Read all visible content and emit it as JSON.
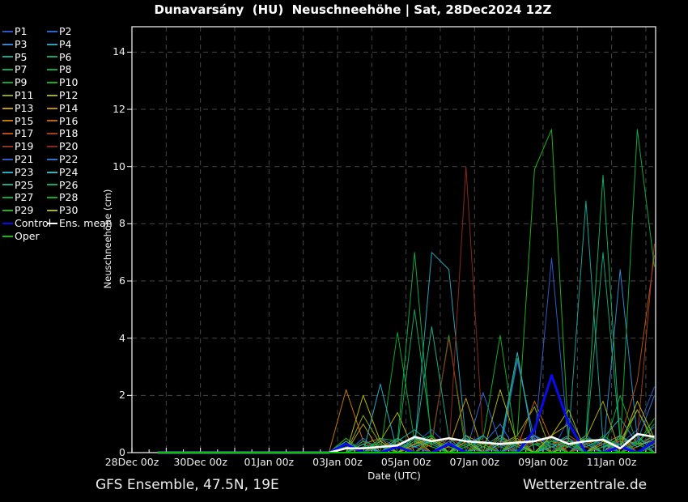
{
  "title": "Dunavarsány  (HU)  Neuschneehöhe | Sat, 28Dec2024 12Z",
  "footer": {
    "left": "GFS Ensemble, 47.5N, 19E",
    "right": "Wetterzentrale.de"
  },
  "chart_data": {
    "type": "line",
    "title": "Dunavarsány  (HU)  Neuschneehöhe | Sat, 28Dec2024 12Z",
    "xlabel": "Date (UTC)",
    "ylabel": "Neuschneehöhe (cm)",
    "ylim": [
      0,
      14.9
    ],
    "xlim_days_since_28dec00z": [
      0,
      15.3
    ],
    "grid": true,
    "legend_position": "outside-upper-left",
    "background_color": "#000000",
    "grid_color": "#464646",
    "axis_color": "#ffffff",
    "ytick_values": [
      0,
      2,
      4,
      6,
      8,
      10,
      12,
      14
    ],
    "xtick_days": [
      0,
      2,
      4,
      6,
      8,
      10,
      12,
      14
    ],
    "xtick_labels": [
      "28Dec 00z",
      "30Dec 00z",
      "01Jan 00z",
      "03Jan 00z",
      "05Jan 00z",
      "07Jan 00z",
      "09Jan 00z",
      "11Jan 00z"
    ],
    "x_days": [
      0.75,
      1.25,
      1.75,
      2.25,
      2.75,
      3.25,
      3.75,
      4.25,
      4.75,
      5.25,
      5.75,
      6.25,
      6.75,
      7.25,
      7.75,
      8.25,
      8.75,
      9.25,
      9.75,
      10.25,
      10.75,
      11.25,
      11.75,
      12.25,
      12.75,
      13.25,
      13.75,
      14.25,
      14.75,
      15.25
    ],
    "series": [
      {
        "name": "P1",
        "color": "#2857c8",
        "width": 1,
        "values": [
          0,
          0,
          0,
          0,
          0,
          0,
          0,
          0,
          0,
          0,
          0,
          0,
          0.2,
          0,
          0,
          0.3,
          0.8,
          0.2,
          0,
          0,
          0.3,
          0,
          0.4,
          0,
          1.2,
          0.2,
          0,
          0.3,
          0.8,
          2.3
        ]
      },
      {
        "name": "P2",
        "color": "#2e63cf",
        "width": 1,
        "values": [
          0,
          0,
          0,
          0,
          0,
          0,
          0,
          0,
          0,
          0,
          0,
          0,
          0,
          0.3,
          0,
          0.2,
          0,
          0.4,
          0,
          2.1,
          0.3,
          0,
          0.5,
          0.2,
          0,
          0.6,
          0.2,
          0,
          0.4,
          0.9
        ]
      },
      {
        "name": "P3",
        "color": "#2f86cf",
        "width": 1,
        "values": [
          0,
          0,
          0,
          0,
          0,
          0,
          0,
          0,
          0,
          0,
          0,
          0.2,
          0,
          0,
          0.4,
          0,
          0.3,
          0,
          0.2,
          0,
          0.5,
          0.3,
          0,
          0.2,
          0,
          0.4,
          0,
          6.4,
          0.5,
          0.2
        ]
      },
      {
        "name": "P4",
        "color": "#25a2b4",
        "width": 1,
        "values": [
          0,
          0,
          0,
          0,
          0,
          0,
          0,
          0,
          0,
          0,
          0,
          0,
          0.3,
          0.5,
          0,
          0.2,
          7.0,
          6.4,
          0.4,
          0,
          0.2,
          0,
          0.6,
          0.3,
          0,
          0.2,
          0.5,
          1.2,
          0.3,
          0
        ]
      },
      {
        "name": "P5",
        "color": "#17a295",
        "width": 1,
        "values": [
          0,
          0,
          0,
          0,
          0,
          0,
          0,
          0,
          0,
          0,
          0,
          0,
          0.2,
          0,
          0.4,
          0.8,
          0.3,
          0,
          0.5,
          0,
          0.2,
          0.4,
          0,
          0.3,
          0.6,
          8.8,
          0.4,
          0,
          0.2,
          0.5
        ]
      },
      {
        "name": "P6",
        "color": "#13a378",
        "width": 1,
        "values": [
          0,
          0,
          0,
          0,
          0,
          0,
          0,
          0,
          0,
          0,
          0,
          0.3,
          0,
          0.4,
          0,
          0.2,
          0.6,
          0,
          0.3,
          0,
          0.4,
          0.2,
          0,
          0.5,
          0,
          0.3,
          7.0,
          0.4,
          0,
          0.2
        ]
      },
      {
        "name": "P7",
        "color": "#12a35c",
        "width": 1,
        "values": [
          0,
          0,
          0,
          0,
          0,
          0,
          0,
          0,
          0,
          0,
          0,
          0,
          0.4,
          0,
          0.2,
          5.0,
          0.5,
          0.3,
          0,
          0.6,
          0,
          0.2,
          0.4,
          0,
          0.3,
          0,
          0.5,
          0.2,
          1.5,
          0.4
        ]
      },
      {
        "name": "P8",
        "color": "#10a343",
        "width": 1,
        "values": [
          0,
          0,
          0,
          0,
          0,
          0,
          0,
          0,
          0,
          0,
          0,
          0.2,
          0,
          0.5,
          0,
          0.3,
          0.4,
          0,
          0.6,
          0,
          0.2,
          3.3,
          0.4,
          0,
          0.5,
          0.2,
          0,
          2.0,
          0.3,
          0
        ]
      },
      {
        "name": "P9",
        "color": "#0ea52c",
        "width": 1,
        "values": [
          0,
          0,
          0,
          0,
          0,
          0,
          0,
          0,
          0,
          0,
          0,
          0,
          0.3,
          0,
          4.2,
          0.4,
          0,
          0.5,
          0.2,
          0,
          0.6,
          0,
          0.3,
          0.4,
          0,
          0.2,
          0.5,
          0,
          0.3,
          1.0
        ]
      },
      {
        "name": "P10",
        "color": "#16ad1e",
        "width": 1,
        "values": [
          0,
          0,
          0,
          0,
          0,
          0,
          0,
          0,
          0,
          0,
          0,
          0.4,
          0,
          0.2,
          0.5,
          0,
          0.3,
          4.1,
          0,
          0.4,
          0.2,
          0,
          0.6,
          0,
          0.3,
          0.5,
          0,
          0.2,
          0.4,
          0
        ]
      },
      {
        "name": "P11",
        "color": "#8ba612",
        "width": 1,
        "values": [
          0,
          0,
          0,
          0,
          0,
          0,
          0,
          0,
          0,
          0,
          0,
          0,
          1.3,
          0.3,
          0,
          0.5,
          0.2,
          0,
          0.4,
          0,
          0.3,
          0.6,
          1.6,
          0,
          0.4,
          0.2,
          0,
          0.5,
          0.3,
          0
        ]
      },
      {
        "name": "P12",
        "color": "#a9ac10",
        "width": 1,
        "values": [
          0,
          0,
          0,
          0,
          0,
          0,
          0,
          0,
          0,
          0,
          0,
          0.3,
          0,
          0.4,
          1.4,
          0,
          0.5,
          0.2,
          0,
          0.3,
          0,
          0.4,
          0.6,
          0,
          0.2,
          0.5,
          1.8,
          0,
          0.3,
          0.4
        ]
      },
      {
        "name": "P13",
        "color": "#bb9b0c",
        "width": 1,
        "values": [
          0,
          0,
          0,
          0,
          0,
          0,
          0,
          0,
          0,
          0,
          0,
          0,
          1.0,
          0,
          0.3,
          0.5,
          0,
          0.2,
          1.9,
          0,
          0.4,
          0.3,
          0,
          0.6,
          1.0,
          0,
          0.2,
          0.4,
          1.5,
          0.3
        ]
      },
      {
        "name": "P14",
        "color": "#c1890a",
        "width": 1,
        "values": [
          0,
          0,
          0,
          0,
          0,
          0,
          0,
          0,
          0,
          0,
          0,
          0.5,
          0,
          0.3,
          0,
          0.4,
          0.2,
          0,
          0.6,
          0.3,
          0,
          0.5,
          0,
          0.4,
          0.2,
          0,
          0.3,
          0.6,
          0,
          0.4
        ]
      },
      {
        "name": "P15",
        "color": "#c27708",
        "width": 1,
        "values": [
          0,
          0,
          0,
          0,
          0,
          0,
          0,
          0,
          0,
          0,
          0,
          2.2,
          0.4,
          0,
          0.3,
          0,
          0.5,
          0.2,
          0,
          0.4,
          0,
          0.3,
          0.6,
          0,
          0.5,
          0.2,
          0,
          0.4,
          0.3,
          0
        ]
      },
      {
        "name": "P16",
        "color": "#bc6409",
        "width": 1,
        "values": [
          0,
          0,
          0,
          0,
          0,
          0,
          0,
          0,
          0,
          0,
          0,
          0,
          0.3,
          0.5,
          0,
          0.2,
          0.4,
          0,
          0.3,
          0,
          0.6,
          0.2,
          1.8,
          0.4,
          0,
          0.3,
          0.5,
          0,
          0.2,
          0.6
        ]
      },
      {
        "name": "P17",
        "color": "#b2500e",
        "width": 1,
        "values": [
          0,
          0,
          0,
          0,
          0,
          0,
          0,
          0,
          0,
          0,
          0,
          0.3,
          0,
          0.2,
          0.4,
          0,
          0.3,
          0.5,
          0,
          0.2,
          0,
          0.4,
          0.3,
          0,
          0.6,
          0.2,
          0,
          0.5,
          2.5,
          6.9
        ]
      },
      {
        "name": "P18",
        "color": "#a43c15",
        "width": 1,
        "values": [
          0,
          0,
          0,
          0,
          0,
          0,
          0,
          0,
          0,
          0,
          0,
          0,
          0.4,
          0,
          0.2,
          0.3,
          0,
          0.5,
          0.2,
          0,
          0.4,
          0,
          0.3,
          0.6,
          0,
          0.2,
          0.5,
          0,
          0.5,
          7.3
        ]
      },
      {
        "name": "P19",
        "color": "#943119",
        "width": 1,
        "values": [
          0,
          0,
          0,
          0,
          0,
          0,
          0,
          0,
          0,
          0,
          0,
          0.2,
          0,
          0.3,
          0,
          0.5,
          0.4,
          4.0,
          0.3,
          0,
          0.2,
          0.6,
          0,
          0.3,
          0.4,
          0,
          0.2,
          0.5,
          0,
          0.3
        ]
      },
      {
        "name": "P20",
        "color": "#8a2817",
        "width": 1,
        "values": [
          0,
          0,
          0,
          0,
          0,
          0,
          0,
          0,
          0,
          0,
          0,
          0,
          0.2,
          0.4,
          0,
          0.3,
          0.5,
          0,
          10.0,
          0.4,
          0,
          0.2,
          0.3,
          0,
          0.5,
          0.2,
          0,
          0.4,
          0.3,
          0
        ]
      },
      {
        "name": "P21",
        "color": "#2a5cc8",
        "width": 1,
        "values": [
          0,
          0,
          0,
          0,
          0,
          0,
          0,
          0,
          0,
          0,
          0,
          0.3,
          0,
          0.5,
          0.2,
          0,
          0.4,
          0,
          0.3,
          0.6,
          0,
          3.2,
          0.4,
          6.8,
          0.2,
          0,
          0.5,
          0.3,
          0,
          0.2
        ]
      },
      {
        "name": "P22",
        "color": "#2e72d2",
        "width": 1,
        "values": [
          0,
          0,
          0,
          0,
          0,
          0,
          0,
          0,
          0,
          0,
          0,
          0,
          0.5,
          0,
          0.3,
          0.2,
          0,
          0.4,
          0,
          0.3,
          1.0,
          0,
          0.6,
          0.2,
          0,
          0.5,
          0.3,
          0,
          0.4,
          2.0
        ]
      },
      {
        "name": "P23",
        "color": "#26a9c1",
        "width": 1,
        "values": [
          0,
          0,
          0,
          0,
          0,
          0,
          0,
          0,
          0,
          0,
          0,
          0.4,
          0,
          2.4,
          0,
          0.5,
          0.3,
          0,
          0.2,
          0.6,
          0,
          0.3,
          0,
          0.4,
          0.5,
          0,
          0.2,
          0.3,
          0.6,
          0
        ]
      },
      {
        "name": "P24",
        "color": "#30b5bf",
        "width": 1,
        "values": [
          0,
          0,
          0,
          0,
          0,
          0,
          0,
          0,
          0,
          0,
          0,
          0,
          0.3,
          0,
          0.5,
          0.2,
          0.4,
          0,
          0.6,
          0,
          0.3,
          3.5,
          0,
          0.2,
          0.4,
          0.3,
          0,
          0.6,
          0.2,
          0.5
        ]
      },
      {
        "name": "P25",
        "color": "#1daa81",
        "width": 1,
        "values": [
          0,
          0,
          0,
          0,
          0,
          0,
          0,
          0,
          0,
          0,
          0,
          0.2,
          0,
          0.4,
          0,
          0.3,
          4.4,
          0.5,
          0,
          0.2,
          0.6,
          0,
          0.3,
          0,
          0.4,
          0.2,
          0.5,
          0,
          0.3,
          0.6
        ]
      },
      {
        "name": "P26",
        "color": "#16a95e",
        "width": 1,
        "values": [
          0,
          0,
          0,
          0,
          0,
          0,
          0,
          0,
          0,
          0,
          0,
          0,
          0.4,
          0.2,
          0,
          0.6,
          0.3,
          0,
          0.5,
          0.2,
          0,
          0.4,
          0,
          0.3,
          0.2,
          0.6,
          9.7,
          0.4,
          0,
          0.3
        ]
      },
      {
        "name": "P27",
        "color": "#0fa83c",
        "width": 1,
        "values": [
          0,
          0,
          0,
          0,
          0,
          0,
          0,
          0,
          0,
          0,
          0,
          0.3,
          0,
          0.5,
          0.4,
          7.0,
          0.2,
          0,
          0.3,
          0,
          0.5,
          0.2,
          0,
          0.4,
          0.3,
          0,
          0.6,
          0.2,
          11.3,
          6.5
        ]
      },
      {
        "name": "P28",
        "color": "#13ab2e",
        "width": 1,
        "values": [
          0,
          0,
          0,
          0,
          0,
          0,
          0,
          0,
          0,
          0,
          0,
          0,
          0.2,
          0.3,
          0,
          0.4,
          0.6,
          0,
          0.2,
          0.5,
          4.1,
          0,
          0.3,
          0.2,
          0,
          0.5,
          0.4,
          0,
          0.3,
          0
        ]
      },
      {
        "name": "P29",
        "color": "#1eb214",
        "width": 1,
        "values": [
          0,
          0,
          0,
          0,
          0,
          0,
          0,
          0,
          0,
          0,
          0,
          0.5,
          0,
          0.2,
          0.3,
          0,
          0.4,
          0.2,
          0,
          0.3,
          0,
          0.6,
          9.9,
          11.3,
          0.4,
          0,
          0.2,
          0.5,
          0.3,
          1.2
        ]
      },
      {
        "name": "P30",
        "color": "#b1b310",
        "width": 1,
        "values": [
          0,
          0,
          0,
          0,
          0,
          0,
          0,
          0,
          0,
          0,
          0,
          0,
          2.0,
          0.4,
          0,
          0.3,
          0.5,
          0,
          0.4,
          0,
          2.2,
          0.3,
          0,
          0.6,
          1.5,
          0,
          0.4,
          0.2,
          1.8,
          0.5
        ]
      },
      {
        "name": "Control",
        "color": "#0a0aee",
        "width": 3,
        "values": [
          0,
          0,
          0,
          0,
          0,
          0,
          0,
          0,
          0,
          0,
          0,
          0.3,
          0,
          0,
          0.2,
          0,
          0,
          0.3,
          0,
          0,
          0,
          0,
          0.8,
          2.7,
          1.0,
          0,
          0,
          0.2,
          0,
          0.4
        ]
      },
      {
        "name": "Ens. mean",
        "color": "#ffffff",
        "width": 2.6,
        "values": [
          0,
          0,
          0,
          0,
          0,
          0,
          0,
          0,
          0,
          0,
          0,
          0.15,
          0.15,
          0.2,
          0.25,
          0.55,
          0.4,
          0.5,
          0.4,
          0.35,
          0.3,
          0.35,
          0.4,
          0.55,
          0.3,
          0.4,
          0.45,
          0.15,
          0.65,
          0.55
        ]
      },
      {
        "name": "Oper",
        "color": "#00c800",
        "width": 2,
        "values": [
          0,
          0,
          0,
          0,
          0,
          0,
          0,
          0,
          0,
          0,
          0,
          0,
          0,
          0,
          0,
          0,
          0,
          0,
          0,
          0,
          0,
          0,
          0,
          0,
          0,
          0,
          0,
          0,
          0,
          0
        ]
      }
    ]
  }
}
